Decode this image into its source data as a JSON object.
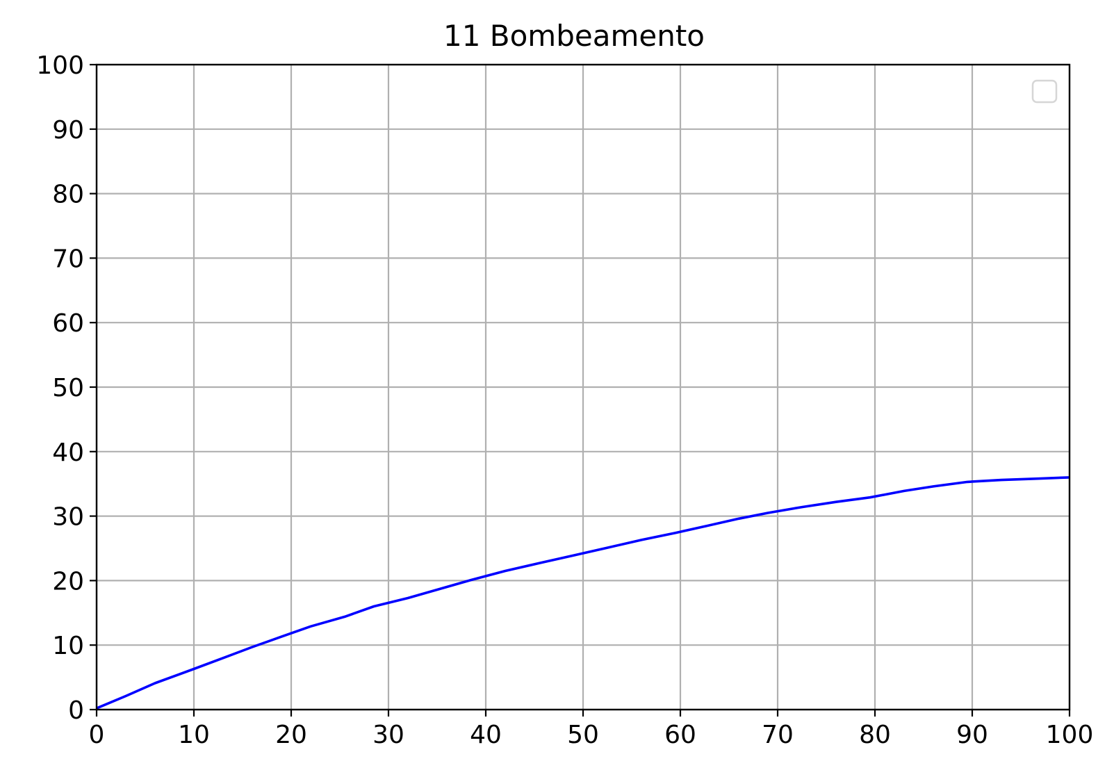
{
  "chart_data": {
    "type": "line",
    "title": "11 Bombeamento",
    "xlabel": "",
    "ylabel": "",
    "xlim": [
      0,
      100
    ],
    "ylim": [
      0,
      100
    ],
    "x_ticks": [
      0,
      10,
      20,
      30,
      40,
      50,
      60,
      70,
      80,
      90,
      100
    ],
    "y_ticks": [
      0,
      10,
      20,
      30,
      40,
      50,
      60,
      70,
      80,
      90,
      100
    ],
    "grid": true,
    "legend": {
      "placement": "top-right",
      "entries": []
    },
    "series": [
      {
        "color": "#0000ff",
        "x": [
          0,
          3,
          6,
          10,
          13,
          16,
          19,
          22,
          25.5,
          28.5,
          32,
          35.5,
          38.5,
          42,
          45.5,
          49,
          52.5,
          56,
          59.5,
          62.5,
          66,
          69,
          72.5,
          76,
          79.5,
          83,
          86,
          89.5,
          93,
          96.5,
          100
        ],
        "y": [
          0.2,
          2.1,
          4.1,
          6.3,
          8.0,
          9.7,
          11.3,
          12.9,
          14.4,
          16.0,
          17.3,
          18.8,
          20.1,
          21.5,
          22.7,
          23.9,
          25.1,
          26.3,
          27.4,
          28.4,
          29.6,
          30.5,
          31.4,
          32.2,
          32.9,
          33.9,
          34.6,
          35.3,
          35.6,
          35.8,
          36.0
        ]
      }
    ]
  }
}
